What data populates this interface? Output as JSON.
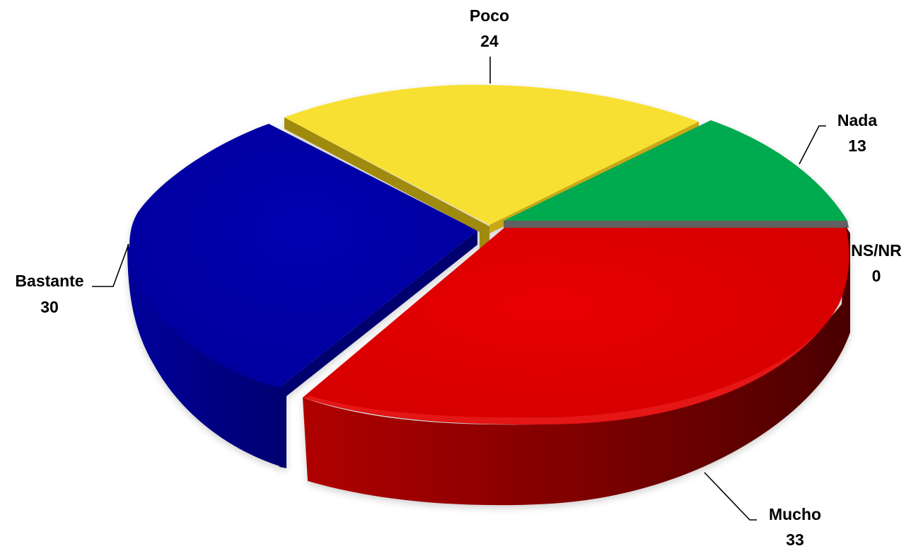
{
  "chart_data": {
    "type": "pie",
    "style": "3d-exploded",
    "title": "",
    "slices": [
      {
        "label": "Mucho",
        "value": 33,
        "color": "#E00000"
      },
      {
        "label": "Bastante",
        "value": 30,
        "color": "#0000A8"
      },
      {
        "label": "Poco",
        "value": 24,
        "color": "#F8E030"
      },
      {
        "label": "Nada",
        "value": 13,
        "color": "#00AA4F"
      },
      {
        "label": "NS/NR",
        "value": 0,
        "color": "#606060"
      }
    ],
    "legend": "none",
    "data_labels": "category-and-value"
  }
}
